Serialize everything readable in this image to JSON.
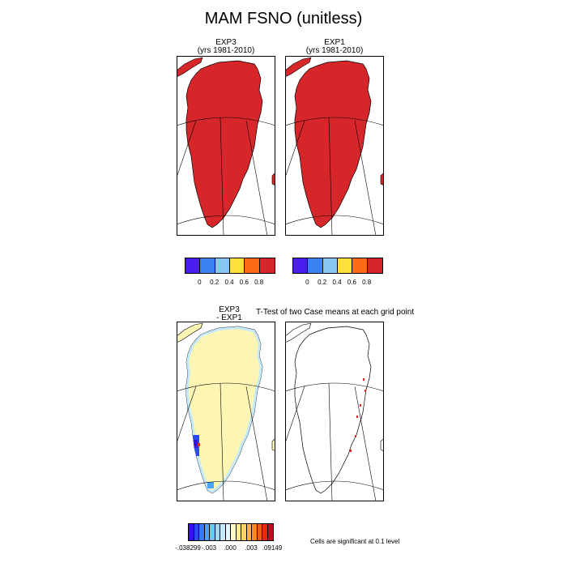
{
  "figure": {
    "title": "MAM FSNO (unitless)"
  },
  "panels": {
    "exp3": {
      "title_line1": "EXP3",
      "title_line2": "(yrs 1981-2010)"
    },
    "exp1": {
      "title_line1": "EXP1",
      "title_line2": "(yrs 1981-2010)"
    },
    "diff": {
      "title_line1": "EXP3",
      "title_line2": "- EXP1"
    },
    "ttest": {
      "title": "T-Test of two Case means at each grid point"
    }
  },
  "colorbar_fields": {
    "colors": [
      "#4a1ef0",
      "#3a83f2",
      "#86c6f3",
      "#ffe13a",
      "#ff6a15",
      "#d7262a"
    ],
    "labels": [
      "0",
      "0.2",
      "0.4",
      "0.6",
      "0.8"
    ]
  },
  "colorbar_diff": {
    "colors": [
      "#3b0ef0",
      "#2b49f5",
      "#2d7ef8",
      "#4aa4fb",
      "#74c2fb",
      "#9dd8f9",
      "#c6eafb",
      "#e6f6fd",
      "#fdf9c6",
      "#fde98e",
      "#fdd35c",
      "#fdb637",
      "#fd8a23",
      "#f95c18",
      "#e8271b",
      "#c20f1f"
    ],
    "labels": [
      "-.038299",
      "-.003",
      ".000",
      ".003",
      ".09149"
    ]
  },
  "significance_note": "Cells are significant at 0.1 level",
  "map_colors": {
    "land_fill": "#d7262a",
    "diff_fill": "#fdf5b4",
    "diff_fringe": "#c6eafb",
    "sig_mark": "#e8271b",
    "coast": "#000000"
  }
}
